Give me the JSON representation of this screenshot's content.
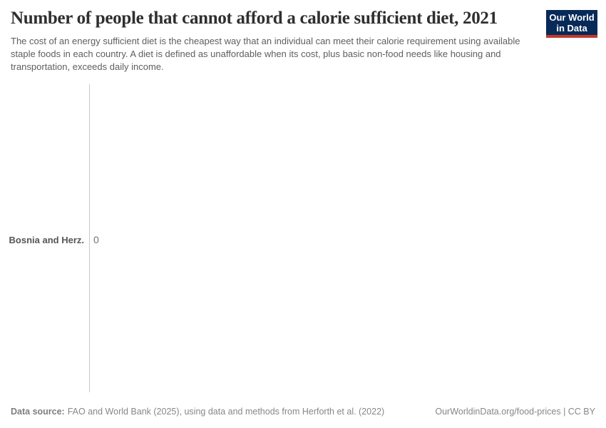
{
  "header": {
    "title": "Number of people that cannot afford a calorie sufficient diet, 2021",
    "subtitle": "The cost of an energy sufficient diet is the cheapest way that an individual can meet their calorie requirement using available staple foods in each country. A diet is defined as unaffordable when its cost, plus basic non-food needs like housing and transportation, exceeds daily income."
  },
  "logo": {
    "line1": "Our World",
    "line2": "in Data",
    "background_color": "#082A58",
    "accent_color": "#C0392B"
  },
  "chart_data": {
    "type": "bar",
    "orientation": "horizontal",
    "title": "Number of people that cannot afford a calorie sufficient diet, 2021",
    "year_label": "2021",
    "categories": [
      "Bosnia and Herz."
    ],
    "values": [
      0
    ],
    "value_labels": [
      "0"
    ],
    "xlabel": "",
    "ylabel": "",
    "xlim": [
      0,
      1
    ],
    "grid": false,
    "legend_position": "none",
    "axis_line_color": "#c9c9c9"
  },
  "footer": {
    "source_label": "Data source:",
    "source_text": "FAO and World Bank (2025), using data and methods from Herforth et al. (2022)",
    "link_text": "OurWorldinData.org/food-prices | CC BY"
  }
}
